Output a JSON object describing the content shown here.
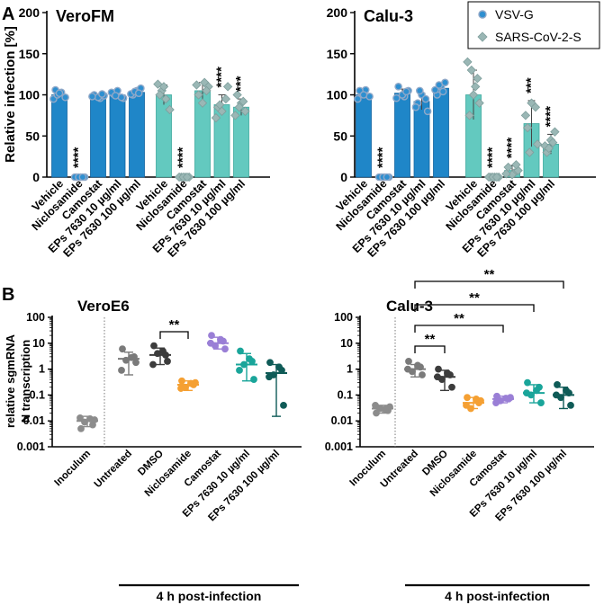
{
  "colors": {
    "blue": "#1f86c8",
    "blue_edge": "#1565a0",
    "teal": "#63c9bf",
    "teal_edge": "#3ea89e",
    "marker_blue": "#2e8fd0",
    "marker_edge": "#8fa8c8",
    "marker_diamond": "#9ab7b5",
    "inoculum": "#8c8c8c",
    "untreated": "#7a7a7a",
    "dmso": "#3c3c3c",
    "niclosamide": "#f5a033",
    "camostat": "#9a7fd6",
    "eps10": "#1aa59a",
    "eps100": "#0f5b57"
  },
  "chart_data": [
    {
      "type": "bar",
      "panel_label": "A",
      "title": "VeroFM",
      "ylabel": "Relative infection [%]",
      "ylim": [
        0,
        200
      ],
      "yticks": [
        "0",
        "50",
        "100",
        "150",
        "200"
      ],
      "categories": [
        "Vehicle",
        "Niclosamide",
        "Camostat",
        "EPs 7630 10 µg/ml",
        "EPs 7630 100 µg/ml"
      ],
      "series": [
        {
          "name": "VSV-G",
          "values": [
            100,
            0,
            98,
            100,
            103
          ],
          "points": [
            [
              95,
              100,
              103,
              97,
              106,
              102
            ],
            [
              0,
              0,
              0,
              0,
              0,
              0
            ],
            [
              96,
              99,
              100,
              97,
              101,
              98
            ],
            [
              96,
              101,
              105,
              97,
              103,
              99
            ],
            [
              100,
              105,
              108,
              101,
              104,
              102
            ]
          ],
          "errors": [
            4,
            0,
            3,
            4,
            4
          ],
          "significance": [
            "",
            "****",
            "",
            "",
            ""
          ]
        },
        {
          "name": "SARS-CoV-2-S",
          "values": [
            100,
            0,
            105,
            88,
            85
          ],
          "points": [
            [
              113,
              105,
              95,
              82,
              100,
              110
            ],
            [
              0,
              0,
              0,
              0,
              0,
              0
            ],
            [
              115,
              110,
              100,
              90,
              105,
              112
            ],
            [
              110,
              85,
              80,
              95,
              72,
              88
            ],
            [
              100,
              90,
              80,
              75,
              85,
              92
            ]
          ],
          "errors": [
            12,
            0,
            10,
            12,
            10
          ],
          "significance": [
            "",
            "****",
            "",
            "****",
            "***"
          ]
        }
      ]
    },
    {
      "type": "bar",
      "title": "Calu-3",
      "ylim": [
        0,
        200
      ],
      "yticks": [
        "0",
        "50",
        "100",
        "150",
        "200"
      ],
      "categories": [
        "Vehicle",
        "Niclosamide",
        "Camostat",
        "EPs 7630 10 µg/ml",
        "EPs 7630 100 µg/ml"
      ],
      "legend": [
        "VSV-G",
        "SARS-CoV-2-S"
      ],
      "legend_position": "top-right",
      "series": [
        {
          "name": "VSV-G",
          "values": [
            100,
            0,
            102,
            92,
            108
          ],
          "points": [
            [
              95,
              102,
              106,
              98,
              105,
              100
            ],
            [
              0,
              0,
              0,
              0,
              0,
              0
            ],
            [
              98,
              105,
              110,
              100,
              104,
              96
            ],
            [
              80,
              90,
              100,
              95,
              85,
              105
            ],
            [
              100,
              110,
              115,
              106,
              112,
              104
            ]
          ],
          "errors": [
            5,
            0,
            5,
            10,
            6
          ],
          "significance": [
            "",
            "****",
            "",
            "",
            ""
          ]
        },
        {
          "name": "SARS-CoV-2-S",
          "values": [
            100,
            0,
            8,
            65,
            40
          ],
          "points": [
            [
              140,
              130,
              110,
              90,
              75,
              100,
              120
            ],
            [
              0,
              0,
              0,
              0,
              0,
              0
            ],
            [
              5,
              8,
              12,
              3,
              15,
              4
            ],
            [
              40,
              60,
              90,
              85,
              75,
              30
            ],
            [
              30,
              45,
              55,
              38,
              35,
              42
            ]
          ],
          "errors": [
            30,
            0,
            6,
            28,
            12
          ],
          "significance": [
            "",
            "****",
            "****",
            "***",
            "****"
          ]
        }
      ]
    },
    {
      "type": "scatter",
      "panel_label": "B",
      "title": "VeroE6",
      "scale": "log",
      "ylabel": [
        "relative sgmRNA",
        "N transcription"
      ],
      "ylim": [
        0.001,
        100
      ],
      "yticks": [
        "100",
        "10",
        "1",
        "0.1",
        "0.01",
        "0.001"
      ],
      "categories": [
        "Inoculum",
        "Untreated",
        "DMSO",
        "Niclosamide",
        "Camostat",
        "EPs 7630 10 µg/ml",
        "EPs 7630 100 µg/ml"
      ],
      "groups": [
        {
          "name": "Inoculum",
          "color_key": "inoculum",
          "mean": 0.01,
          "lo": 0.006,
          "hi": 0.015,
          "points": [
            0.005,
            0.007,
            0.009,
            0.011,
            0.013,
            0.012
          ]
        },
        {
          "name": "Untreated",
          "color_key": "untreated",
          "mean": 2.5,
          "lo": 0.6,
          "hi": 4.5,
          "points": [
            6,
            3,
            2.2,
            1.8,
            0.9,
            2.8
          ]
        },
        {
          "name": "DMSO",
          "color_key": "dmso",
          "mean": 3.5,
          "lo": 1.5,
          "hi": 6.5,
          "points": [
            8,
            3.5,
            4,
            2,
            1.5,
            5
          ]
        },
        {
          "name": "Niclosamide",
          "color_key": "niclosamide",
          "mean": 0.25,
          "lo": 0.15,
          "hi": 0.35,
          "points": [
            0.35,
            0.25,
            0.2,
            0.3,
            0.18,
            0.28
          ]
        },
        {
          "name": "Camostat",
          "color_key": "camostat",
          "mean": 10,
          "lo": 6,
          "hi": 17,
          "points": [
            20,
            12,
            8,
            6,
            10,
            14
          ]
        },
        {
          "name": "EPs 7630 10 µg/ml",
          "color_key": "eps10",
          "mean": 1.5,
          "lo": 0.35,
          "hi": 4,
          "points": [
            5,
            2,
            1.5,
            0.4,
            0.9,
            2.5
          ]
        },
        {
          "name": "EPs 7630 100 µg/ml",
          "color_key": "eps100",
          "mean": 0.7,
          "lo": 0.015,
          "hi": 1.5,
          "points": [
            1.8,
            0.9,
            0.6,
            0.04,
            0.5,
            1.2
          ]
        }
      ],
      "brackets": [
        {
          "from": "DMSO",
          "to": "Niclosamide",
          "label": "**"
        }
      ],
      "group_label": "4 h post-infection"
    },
    {
      "type": "scatter",
      "title": "Calu-3",
      "scale": "log",
      "ylim": [
        0.001,
        100
      ],
      "yticks": [
        "100",
        "10",
        "1",
        "0.1",
        "0.01",
        "0.001"
      ],
      "categories": [
        "Inoculum",
        "Untreated",
        "DMSO",
        "Niclosamide",
        "Camostat",
        "EPs 7630 10 µg/ml",
        "EPs 7630 100 µg/ml"
      ],
      "groups": [
        {
          "name": "Inoculum",
          "color_key": "inoculum",
          "mean": 0.03,
          "lo": 0.02,
          "hi": 0.04,
          "points": [
            0.02,
            0.025,
            0.03,
            0.035,
            0.04,
            0.028
          ]
        },
        {
          "name": "Untreated",
          "color_key": "untreated",
          "mean": 1,
          "lo": 0.5,
          "hi": 1.5,
          "points": [
            2,
            1.2,
            0.8,
            0.6,
            1,
            1.4
          ]
        },
        {
          "name": "DMSO",
          "color_key": "dmso",
          "mean": 0.5,
          "lo": 0.15,
          "hi": 0.9,
          "points": [
            1,
            0.6,
            0.4,
            0.2,
            0.5,
            0.7
          ]
        },
        {
          "name": "Niclosamide",
          "color_key": "niclosamide",
          "mean": 0.05,
          "lo": 0.03,
          "hi": 0.08,
          "points": [
            0.08,
            0.05,
            0.03,
            0.06,
            0.04,
            0.07
          ]
        },
        {
          "name": "Camostat",
          "color_key": "camostat",
          "mean": 0.07,
          "lo": 0.05,
          "hi": 0.09,
          "points": [
            0.09,
            0.07,
            0.06,
            0.08,
            0.05,
            0.075
          ]
        },
        {
          "name": "EPs 7630 10 µg/ml",
          "color_key": "eps10",
          "mean": 0.12,
          "lo": 0.05,
          "hi": 0.25,
          "points": [
            0.3,
            0.2,
            0.1,
            0.05,
            0.12,
            0.15
          ]
        },
        {
          "name": "EPs 7630 100 µg/ml",
          "color_key": "eps100",
          "mean": 0.1,
          "lo": 0.03,
          "hi": 0.2,
          "points": [
            0.25,
            0.12,
            0.08,
            0.04,
            0.1,
            0.15
          ]
        }
      ],
      "brackets": [
        {
          "from": "Untreated",
          "to": "EPs 7630 100 µg/ml",
          "label": "**"
        },
        {
          "from": "Untreated",
          "to": "EPs 7630 10 µg/ml",
          "label": "**"
        },
        {
          "from": "Untreated",
          "to": "Camostat",
          "label": "**"
        },
        {
          "from": "Untreated",
          "to": "DMSO",
          "label": "**"
        }
      ],
      "group_label": "4 h post-infection"
    }
  ]
}
